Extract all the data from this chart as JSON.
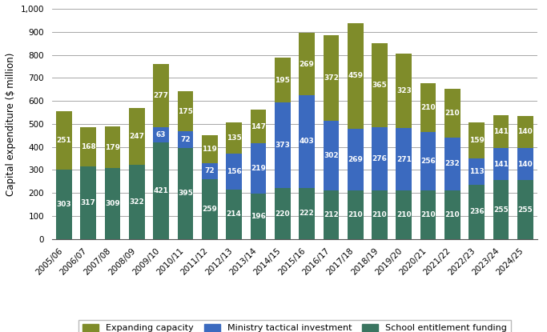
{
  "years": [
    "2005/06",
    "2006/07",
    "2007/08",
    "2008/09",
    "2009/10",
    "2010/11",
    "2011/12",
    "2012/13",
    "2013/14",
    "2014/15",
    "2015/16",
    "2016/17",
    "2017/18",
    "2018/19",
    "2019/20",
    "2020/21",
    "2021/22",
    "2022/23",
    "2023/24",
    "2024/25"
  ],
  "school_entitlement": [
    303,
    317,
    309,
    322,
    421,
    395,
    259,
    214,
    196,
    220,
    222,
    212,
    210,
    210,
    210,
    210,
    210,
    236,
    255,
    255
  ],
  "ministry_tactical": [
    0,
    0,
    0,
    0,
    63,
    72,
    72,
    156,
    219,
    373,
    403,
    302,
    269,
    276,
    271,
    256,
    232,
    113,
    141,
    140
  ],
  "expanding_capacity": [
    251,
    168,
    179,
    247,
    277,
    175,
    119,
    135,
    147,
    195,
    269,
    372,
    459,
    365,
    323,
    210,
    210,
    159,
    141,
    140
  ],
  "color_school": "#3a7560",
  "color_ministry": "#3b6abf",
  "color_expanding": "#7f8c2a",
  "ylabel": "Capital expenditure ($ million)",
  "ylim": [
    0,
    1000
  ],
  "yticks": [
    0,
    100,
    200,
    300,
    400,
    500,
    600,
    700,
    800,
    900,
    1000
  ],
  "ytick_labels": [
    "0",
    "100",
    "200",
    "300",
    "400",
    "500",
    "600",
    "700",
    "800",
    "900",
    "1,000"
  ],
  "legend_labels": [
    "Expanding capacity",
    "Ministry tactical investment",
    "School entitlement funding"
  ],
  "bar_width": 0.65,
  "label_fontsize": 6.5,
  "axis_fontsize": 8.5,
  "tick_fontsize": 7.5
}
